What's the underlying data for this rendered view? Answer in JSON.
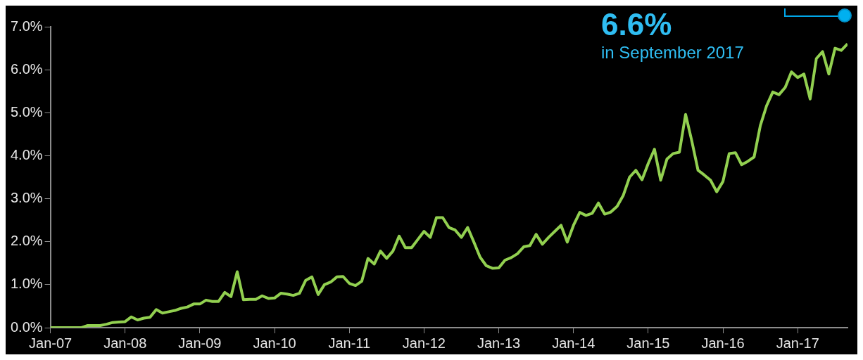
{
  "chart_data": {
    "type": "line",
    "x": [
      "2007-01",
      "2007-02",
      "2007-03",
      "2007-04",
      "2007-05",
      "2007-06",
      "2007-07",
      "2007-08",
      "2007-09",
      "2007-10",
      "2007-11",
      "2007-12",
      "2008-01",
      "2008-02",
      "2008-03",
      "2008-04",
      "2008-05",
      "2008-06",
      "2008-07",
      "2008-08",
      "2008-09",
      "2008-10",
      "2008-11",
      "2008-12",
      "2009-01",
      "2009-02",
      "2009-03",
      "2009-04",
      "2009-05",
      "2009-06",
      "2009-07",
      "2009-08",
      "2009-09",
      "2009-10",
      "2009-11",
      "2009-12",
      "2010-01",
      "2010-02",
      "2010-03",
      "2010-04",
      "2010-05",
      "2010-06",
      "2010-07",
      "2010-08",
      "2010-09",
      "2010-10",
      "2010-11",
      "2010-12",
      "2011-01",
      "2011-02",
      "2011-03",
      "2011-04",
      "2011-05",
      "2011-06",
      "2011-07",
      "2011-08",
      "2011-09",
      "2011-10",
      "2011-11",
      "2011-12",
      "2012-01",
      "2012-02",
      "2012-03",
      "2012-04",
      "2012-05",
      "2012-06",
      "2012-07",
      "2012-08",
      "2012-09",
      "2012-10",
      "2012-11",
      "2012-12",
      "2013-01",
      "2013-02",
      "2013-03",
      "2013-04",
      "2013-05",
      "2013-06",
      "2013-07",
      "2013-08",
      "2013-09",
      "2013-10",
      "2013-11",
      "2013-12",
      "2014-01",
      "2014-02",
      "2014-03",
      "2014-04",
      "2014-05",
      "2014-06",
      "2014-07",
      "2014-08",
      "2014-09",
      "2014-10",
      "2014-11",
      "2014-12",
      "2015-01",
      "2015-02",
      "2015-03",
      "2015-04",
      "2015-05",
      "2015-06",
      "2015-07",
      "2015-08",
      "2015-09",
      "2015-10",
      "2015-11",
      "2015-12",
      "2016-01",
      "2016-02",
      "2016-03",
      "2016-04",
      "2016-05",
      "2016-06",
      "2016-07",
      "2016-08",
      "2016-09",
      "2016-10",
      "2016-11",
      "2016-12",
      "2017-01",
      "2017-02",
      "2017-03",
      "2017-04",
      "2017-05",
      "2017-06",
      "2017-07",
      "2017-08",
      "2017-09"
    ],
    "series": [
      {
        "color": "#92d050",
        "values": [
          0,
          0,
          0,
          0,
          0,
          0,
          0.05,
          0.05,
          0.05,
          0.08,
          0.12,
          0.13,
          0.14,
          0.25,
          0.18,
          0.22,
          0.24,
          0.42,
          0.34,
          0.37,
          0.4,
          0.45,
          0.48,
          0.55,
          0.55,
          0.64,
          0.61,
          0.61,
          0.82,
          0.72,
          1.3,
          0.65,
          0.66,
          0.66,
          0.74,
          0.68,
          0.69,
          0.8,
          0.78,
          0.75,
          0.8,
          1.1,
          1.18,
          0.77,
          1.0,
          1.06,
          1.18,
          1.19,
          1.03,
          0.98,
          1.08,
          1.61,
          1.48,
          1.78,
          1.61,
          1.78,
          2.13,
          1.86,
          1.86,
          2.05,
          2.24,
          2.1,
          2.56,
          2.56,
          2.33,
          2.27,
          2.1,
          2.33,
          1.99,
          1.64,
          1.44,
          1.38,
          1.39,
          1.57,
          1.63,
          1.72,
          1.88,
          1.91,
          2.17,
          1.94,
          2.1,
          2.24,
          2.38,
          1.99,
          2.38,
          2.68,
          2.61,
          2.66,
          2.9,
          2.64,
          2.69,
          2.82,
          3.08,
          3.5,
          3.66,
          3.44,
          3.82,
          4.15,
          3.43,
          3.92,
          4.05,
          4.08,
          4.96,
          4.34,
          3.66,
          3.55,
          3.43,
          3.16,
          3.4,
          4.05,
          4.07,
          3.79,
          3.87,
          3.97,
          4.7,
          5.16,
          5.48,
          5.42,
          5.59,
          5.95,
          5.82,
          5.9,
          5.32,
          6.26,
          6.42,
          5.9,
          6.5,
          6.45,
          6.6
        ]
      }
    ],
    "xlim": [
      "2007-01",
      "2017-09"
    ],
    "xticks": [
      {
        "value": "2007-01",
        "label": "Jan-07"
      },
      {
        "value": "2008-01",
        "label": "Jan-08"
      },
      {
        "value": "2009-01",
        "label": "Jan-09"
      },
      {
        "value": "2010-01",
        "label": "Jan-10"
      },
      {
        "value": "2011-01",
        "label": "Jan-11"
      },
      {
        "value": "2012-01",
        "label": "Jan-12"
      },
      {
        "value": "2013-01",
        "label": "Jan-13"
      },
      {
        "value": "2014-01",
        "label": "Jan-14"
      },
      {
        "value": "2015-01",
        "label": "Jan-15"
      },
      {
        "value": "2016-01",
        "label": "Jan-16"
      },
      {
        "value": "2017-01",
        "label": "Jan-17"
      }
    ],
    "ylim": [
      0,
      7
    ],
    "yticks": [
      {
        "value": 0,
        "label": "0.0%"
      },
      {
        "value": 1,
        "label": "1.0%"
      },
      {
        "value": 2,
        "label": "2.0%"
      },
      {
        "value": 3,
        "label": "3.0%"
      },
      {
        "value": 4,
        "label": "4.0%"
      },
      {
        "value": 5,
        "label": "5.0%"
      },
      {
        "value": 6,
        "label": "6.0%"
      },
      {
        "value": 7,
        "label": "7.0%"
      }
    ],
    "annotations": [
      "6.6%",
      "in September 2017"
    ],
    "grid": false,
    "legend": false,
    "marker": "none",
    "line_style": "solid"
  }
}
